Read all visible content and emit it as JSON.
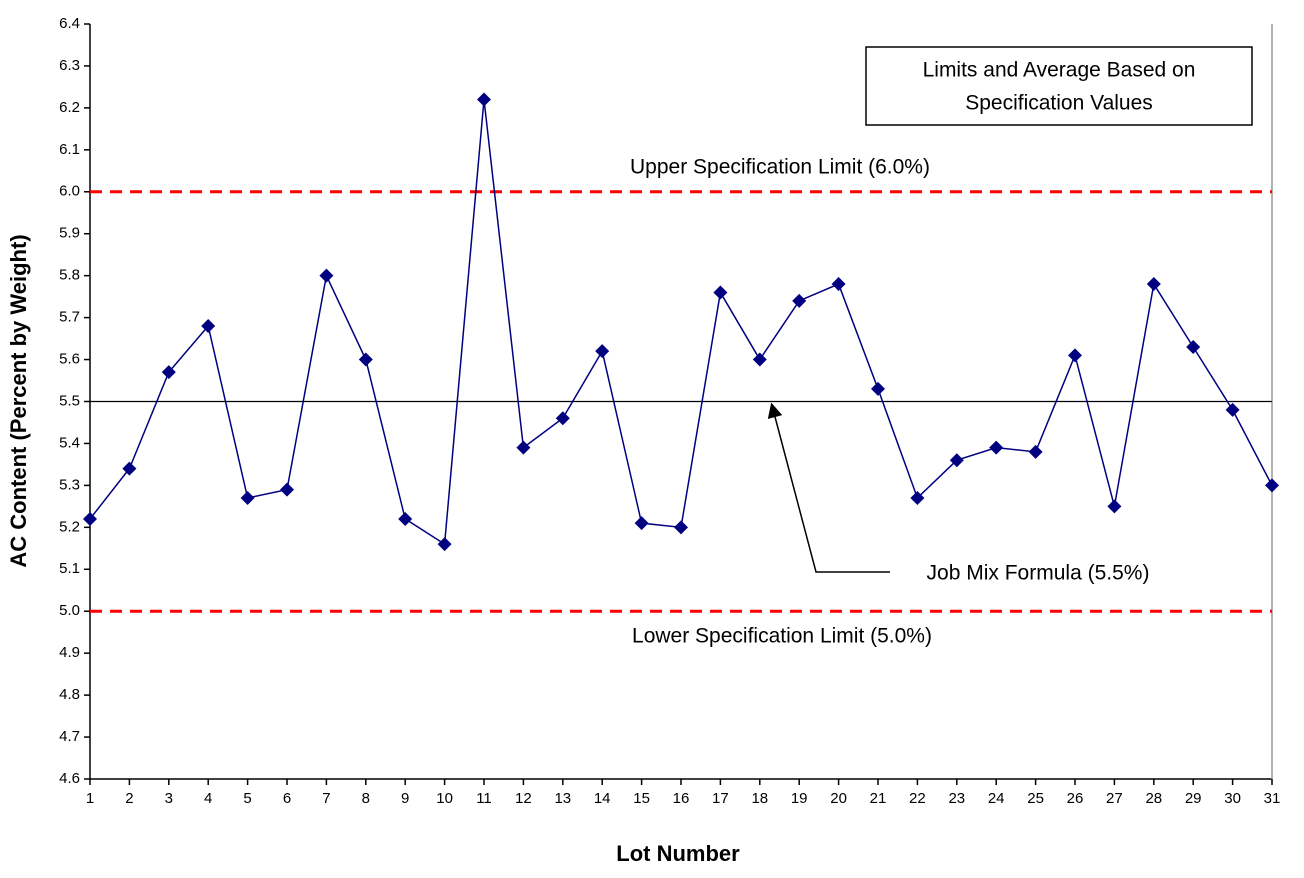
{
  "chart_data": {
    "type": "line",
    "x_label": "Lot Number",
    "y_label": "AC Content (Percent by Weight)",
    "x": [
      1,
      2,
      3,
      4,
      5,
      6,
      7,
      8,
      9,
      10,
      11,
      12,
      13,
      14,
      15,
      16,
      17,
      18,
      19,
      20,
      21,
      22,
      23,
      24,
      25,
      26,
      27,
      28,
      29,
      30,
      31
    ],
    "xlim": [
      1,
      31
    ],
    "xticks": [
      1,
      2,
      3,
      4,
      5,
      6,
      7,
      8,
      9,
      10,
      11,
      12,
      13,
      14,
      15,
      16,
      17,
      18,
      19,
      20,
      21,
      22,
      23,
      24,
      25,
      26,
      27,
      28,
      29,
      30,
      31
    ],
    "ylim": [
      4.6,
      6.4
    ],
    "yticks": [
      4.6,
      4.7,
      4.8,
      4.9,
      {
        "value": 5.0,
        "label": "5.0"
      },
      5.1,
      5.2,
      5.3,
      5.4,
      5.5,
      5.6,
      5.7,
      5.8,
      5.9,
      {
        "value": 6.0,
        "label": "6.0"
      },
      6.1,
      6.2,
      6.3,
      6.4
    ],
    "series": [
      {
        "name": "AC Content",
        "color": "#000080",
        "values": [
          5.22,
          5.34,
          5.57,
          5.68,
          5.27,
          5.29,
          5.8,
          5.6,
          5.22,
          5.16,
          6.22,
          5.39,
          5.46,
          5.62,
          5.21,
          5.2,
          5.76,
          5.6,
          5.74,
          5.78,
          5.53,
          5.27,
          5.36,
          5.39,
          5.38,
          5.61,
          5.25,
          5.78,
          5.63,
          5.48,
          5.3
        ]
      }
    ],
    "reference_lines": [
      {
        "value": 6.0,
        "label": "Upper Specification Limit (6.0%)",
        "color": "#ff0000",
        "dashed": true
      },
      {
        "value": 5.0,
        "label": "Lower Specification Limit (5.0%)",
        "color": "#ff0000",
        "dashed": true
      },
      {
        "value": 5.5,
        "label": "Job Mix Formula (5.5%)",
        "color": "#000000",
        "dashed": false
      }
    ],
    "annotation_box": [
      "Limits and Average Based on",
      "Specification Values"
    ]
  }
}
